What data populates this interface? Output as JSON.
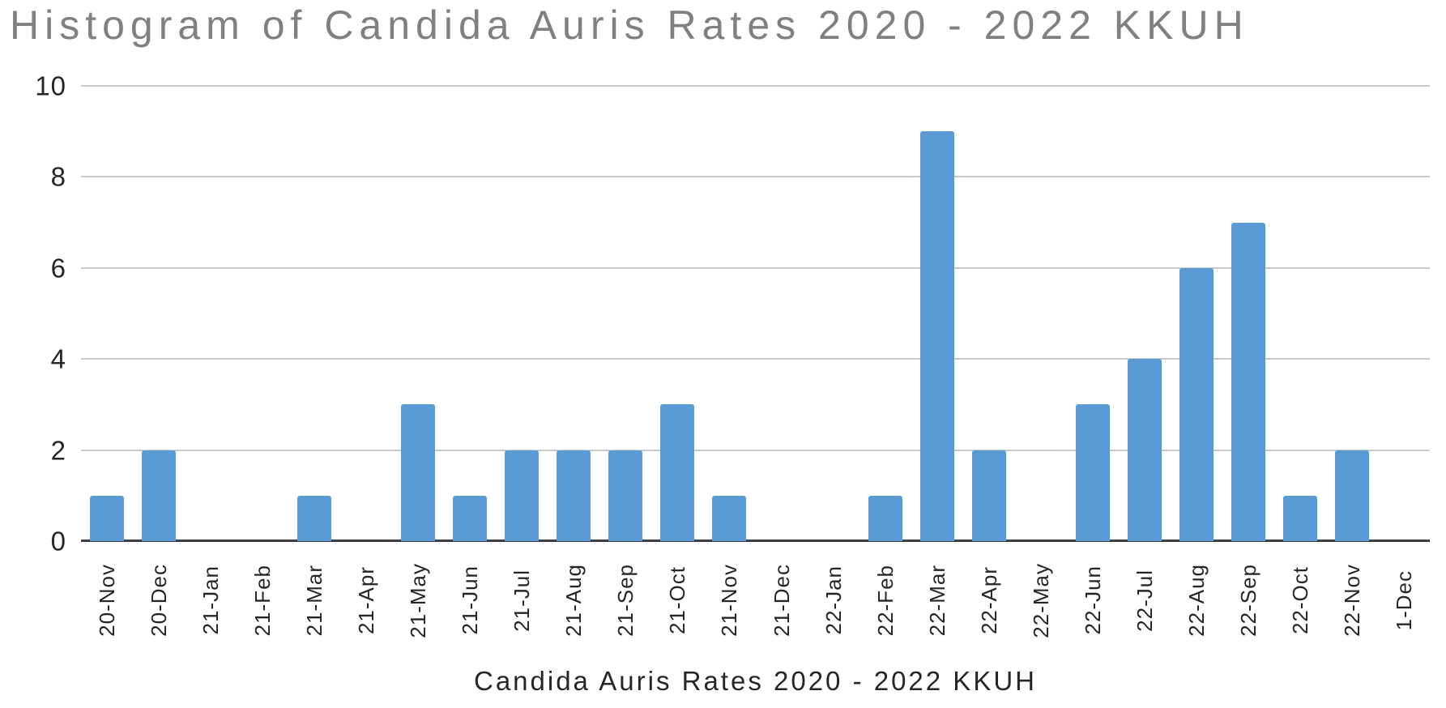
{
  "title": "Histogram of Candida Auris Rates 2020 - 2022 KKUH",
  "x_axis_caption": "Candida Auris Rates 2020 - 2022 KKUH",
  "colors": {
    "bar": "#5b9bd5",
    "title_text": "#808080",
    "axis_text": "#262626",
    "gridline": "#c9c9c9",
    "axis_line": "#3f3f3f",
    "background": "#ffffff"
  },
  "chart_data": {
    "type": "bar",
    "title": "Histogram of Candida Auris Rates 2020 - 2022 KKUH",
    "xlabel": "Candida Auris Rates 2020 - 2022 KKUH",
    "ylabel": "",
    "ylim": [
      0,
      10
    ],
    "yticks": [
      0,
      2,
      4,
      6,
      8,
      10
    ],
    "grid": true,
    "legend": false,
    "x_tick_rotation_deg": 90,
    "categories": [
      "20-Nov",
      "20-Dec",
      "21-Jan",
      "21-Feb",
      "21-Mar",
      "21-Apr",
      "21-May",
      "21-Jun",
      "21-Jul",
      "21-Aug",
      "21-Sep",
      "21-Oct",
      "21-Nov",
      "21-Dec",
      "22-Jan",
      "22-Feb",
      "22-Mar",
      "22-Apr",
      "22-May",
      "22-Jun",
      "22-Jul",
      "22-Aug",
      "22-Sep",
      "22-Oct",
      "22-Nov",
      "1-Dec"
    ],
    "values": [
      1,
      2,
      0,
      0,
      1,
      0,
      3,
      1,
      2,
      2,
      2,
      3,
      1,
      0,
      0,
      1,
      9,
      2,
      0,
      3,
      4,
      6,
      7,
      1,
      2,
      0
    ]
  }
}
